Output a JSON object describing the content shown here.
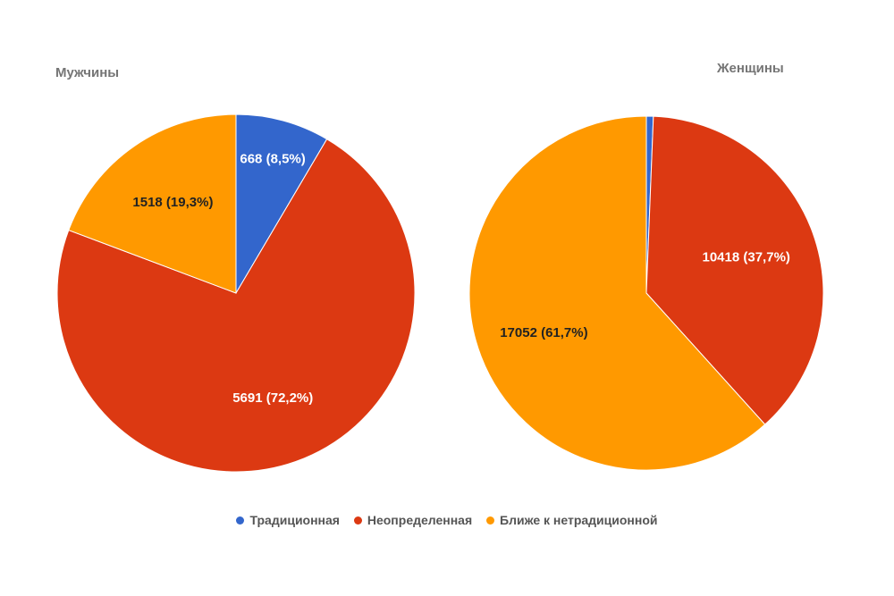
{
  "chart_data": [
    {
      "type": "pie",
      "title": "Мужчины",
      "categories": [
        "Традиционная",
        "Неопределенная",
        "Ближе к нетрадиционной"
      ],
      "values": [
        668,
        5691,
        1518
      ],
      "labels": [
        "668 (8,5%)",
        "5691 (72,2%)",
        "1518 (19,3%)"
      ],
      "colors": [
        "#3366cc",
        "#dc3912",
        "#ff9900"
      ],
      "label_colors": [
        "#ffffff",
        "#ffffff",
        "#222222"
      ]
    },
    {
      "type": "pie",
      "title": "Женщины",
      "categories": [
        "Традиционная",
        "Неопределенная",
        "Ближе к нетрадиционной"
      ],
      "values": [
        175,
        10418,
        17052
      ],
      "labels": [
        "",
        "10418 (37,7%)",
        "17052 (61,7%)"
      ],
      "colors": [
        "#3366cc",
        "#dc3912",
        "#ff9900"
      ],
      "label_colors": [
        "#ffffff",
        "#ffffff",
        "#222222"
      ]
    }
  ],
  "legend": {
    "placement": "bottom",
    "items": [
      {
        "label": "Традиционная",
        "color": "#3366cc"
      },
      {
        "label": "Неопределенная",
        "color": "#dc3912"
      },
      {
        "label": "Ближе к нетрадиционной",
        "color": "#ff9900"
      }
    ]
  }
}
